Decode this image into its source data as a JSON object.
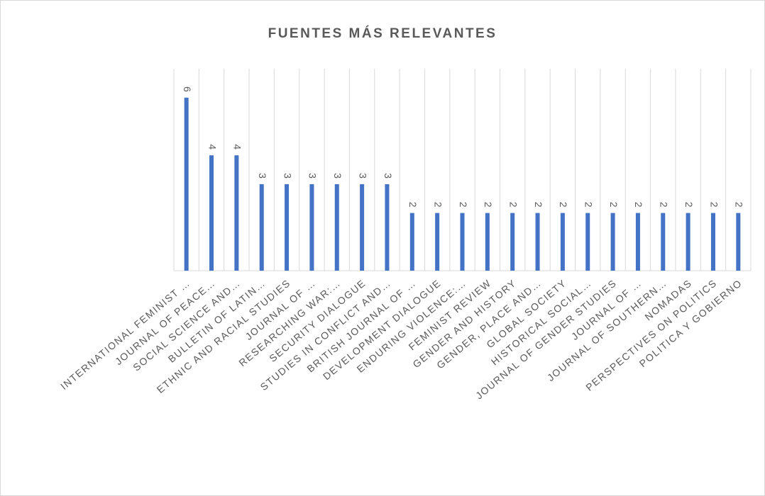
{
  "chart_data": {
    "type": "bar",
    "title": "FUENTES MÁS RELEVANTES",
    "categories": [
      "INTERNATIONAL FEMINIST …",
      "JOURNAL OF PEACE…",
      "SOCIAL SCIENCE AND…",
      "BULLETIN OF LATIN…",
      "ETHNIC AND RACIAL STUDIES",
      "JOURNAL OF …",
      "RESEARCHING WAR:…",
      "SECURITY DIALOGUE",
      "STUDIES IN CONFLICT AND…",
      "BRITISH JOURNAL OF …",
      "DEVELOPMENT DIALOGUE",
      "ENDURING VIOLENCE:…",
      "FEMINIST REVIEW",
      "GENDER AND HISTORY",
      "GENDER, PLACE AND…",
      "GLOBAL SOCIETY",
      "HISTORICAL SOCIAL…",
      "JOURNAL OF GENDER STUDIES",
      "JOURNAL OF …",
      "JOURNAL OF SOUTHERN…",
      "NOMADAS",
      "PERSPECTIVES ON POLITICS",
      "POLITICA Y GOBIERNO"
    ],
    "values": [
      6,
      4,
      4,
      3,
      3,
      3,
      3,
      3,
      3,
      2,
      2,
      2,
      2,
      2,
      2,
      2,
      2,
      2,
      2,
      2,
      2,
      2,
      2
    ],
    "color": "#4472c4",
    "grid": true
  }
}
